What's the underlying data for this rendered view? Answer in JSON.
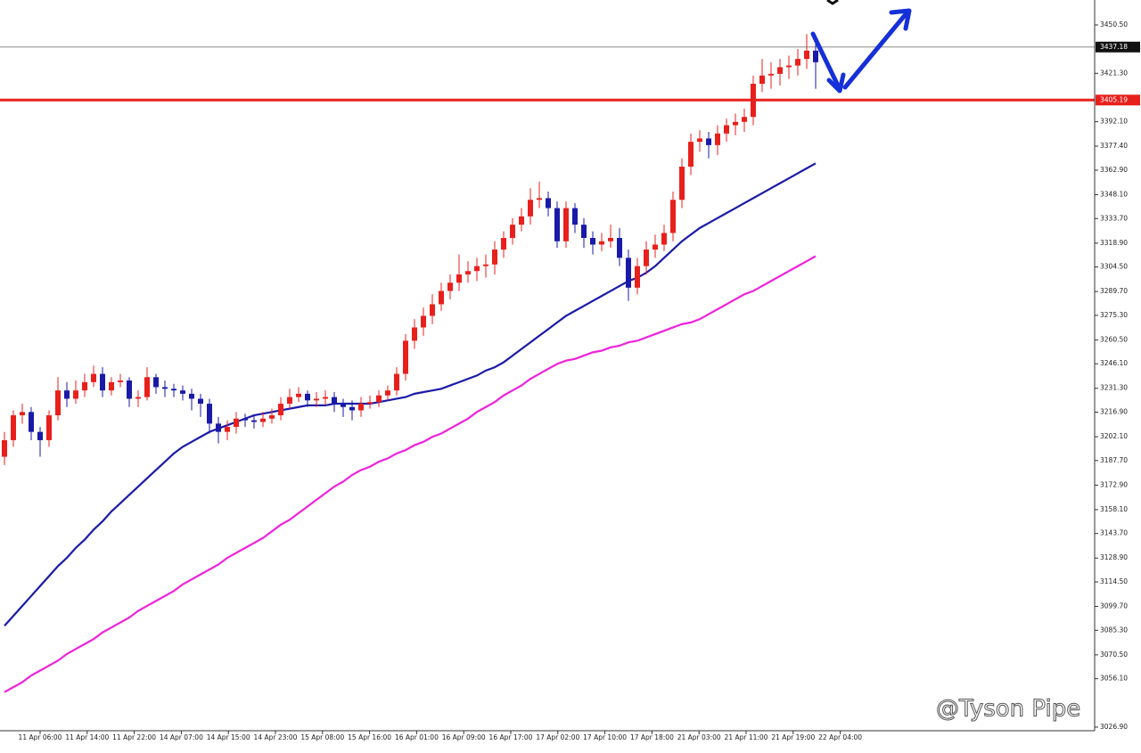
{
  "chart_data": {
    "type": "candlestick",
    "ylim": [
      3024.72,
      3465.55
    ],
    "yticks": [
      {
        "value": 3450.5,
        "label": "3450.50"
      },
      {
        "value": 3421.3,
        "label": "3421.30"
      },
      {
        "value": 3392.1,
        "label": "3392.10"
      },
      {
        "value": 3377.4,
        "label": "3377.40"
      },
      {
        "value": 3362.9,
        "label": "3362.90"
      },
      {
        "value": 3348.1,
        "label": "3348.10"
      },
      {
        "value": 3333.7,
        "label": "3333.70"
      },
      {
        "value": 3318.9,
        "label": "3318.90"
      },
      {
        "value": 3304.5,
        "label": "3304.50"
      },
      {
        "value": 3289.7,
        "label": "3289.70"
      },
      {
        "value": 3275.3,
        "label": "3275.30"
      },
      {
        "value": 3260.5,
        "label": "3260.50"
      },
      {
        "value": 3246.1,
        "label": "3246.10"
      },
      {
        "value": 3231.3,
        "label": "3231.30"
      },
      {
        "value": 3216.9,
        "label": "3216.90"
      },
      {
        "value": 3202.1,
        "label": "3202.10"
      },
      {
        "value": 3187.7,
        "label": "3187.70"
      },
      {
        "value": 3172.9,
        "label": "3172.90"
      },
      {
        "value": 3158.1,
        "label": "3158.10"
      },
      {
        "value": 3143.7,
        "label": "3143.70"
      },
      {
        "value": 3128.9,
        "label": "3128.90"
      },
      {
        "value": 3114.5,
        "label": "3114.50"
      },
      {
        "value": 3099.7,
        "label": "3099.70"
      },
      {
        "value": 3085.3,
        "label": "3085.30"
      },
      {
        "value": 3070.5,
        "label": "3070.50"
      },
      {
        "value": 3056.1,
        "label": "3056.10"
      },
      {
        "value": 3026.9,
        "label": "3026.90"
      }
    ],
    "x_labels": [
      "11 Apr 06:00",
      "11 Apr 14:00",
      "11 Apr 22:00",
      "14 Apr 07:00",
      "14 Apr 15:00",
      "14 Apr 23:00",
      "15 Apr 08:00",
      "15 Apr 16:00",
      "16 Apr 01:00",
      "16 Apr 09:00",
      "16 Apr 17:00",
      "17 Apr 02:00",
      "17 Apr 10:00",
      "17 Apr 18:00",
      "21 Apr 03:00",
      "21 Apr 11:00",
      "21 Apr 19:00",
      "22 Apr 04:00"
    ],
    "up_color": "#e8201c",
    "down_color": "#1a1aa8",
    "open": [
      3190,
      3200,
      3215,
      3217,
      3205,
      3200,
      3215,
      3230,
      3225,
      3230,
      3235,
      3240,
      3230,
      3235,
      3236,
      3225,
      3226,
      3238,
      3232,
      3231,
      3230,
      3228,
      3225,
      3222,
      3210,
      3205,
      3208,
      3213,
      3212,
      3211,
      3213,
      3215,
      3222,
      3226,
      3228,
      3224,
      3225,
      3226,
      3222,
      3220,
      3218,
      3222,
      3223,
      3227,
      3230,
      3240,
      3260,
      3268,
      3275,
      3282,
      3290,
      3295,
      3300,
      3302,
      3305,
      3306,
      3315,
      3322,
      3330,
      3335,
      3345,
      3346,
      3340,
      3320,
      3340,
      3330,
      3322,
      3318,
      3320,
      3322,
      3310,
      3292,
      3305,
      3315,
      3318,
      3325,
      3345,
      3365,
      3380,
      3382,
      3378,
      3385,
      3390,
      3392,
      3395,
      3415,
      3420,
      3421,
      3425,
      3426,
      3430,
      3435
    ],
    "high": [
      3205,
      3218,
      3222,
      3220,
      3208,
      3218,
      3238,
      3235,
      3236,
      3240,
      3245,
      3244,
      3238,
      3240,
      3238,
      3230,
      3244,
      3240,
      3236,
      3234,
      3233,
      3231,
      3228,
      3225,
      3214,
      3212,
      3217,
      3216,
      3215,
      3217,
      3219,
      3226,
      3231,
      3232,
      3230,
      3229,
      3230,
      3229,
      3225,
      3224,
      3226,
      3227,
      3230,
      3233,
      3244,
      3264,
      3273,
      3280,
      3288,
      3295,
      3300,
      3312,
      3308,
      3310,
      3312,
      3320,
      3326,
      3334,
      3340,
      3352,
      3356,
      3350,
      3344,
      3344,
      3343,
      3334,
      3326,
      3325,
      3330,
      3328,
      3315,
      3310,
      3320,
      3324,
      3330,
      3350,
      3370,
      3385,
      3387,
      3386,
      3390,
      3394,
      3397,
      3400,
      3420,
      3430,
      3428,
      3430,
      3432,
      3436,
      3445,
      3440
    ],
    "low": [
      3185,
      3196,
      3210,
      3200,
      3190,
      3196,
      3212,
      3220,
      3222,
      3226,
      3232,
      3226,
      3227,
      3232,
      3220,
      3220,
      3224,
      3228,
      3226,
      3226,
      3224,
      3218,
      3214,
      3204,
      3198,
      3200,
      3204,
      3208,
      3207,
      3208,
      3210,
      3212,
      3219,
      3223,
      3220,
      3220,
      3221,
      3217,
      3214,
      3212,
      3214,
      3219,
      3220,
      3224,
      3227,
      3236,
      3255,
      3263,
      3270,
      3278,
      3285,
      3290,
      3295,
      3296,
      3298,
      3300,
      3310,
      3318,
      3326,
      3330,
      3340,
      3335,
      3316,
      3316,
      3325,
      3316,
      3312,
      3314,
      3316,
      3305,
      3284,
      3288,
      3300,
      3310,
      3314,
      3320,
      3340,
      3360,
      3374,
      3370,
      3372,
      3380,
      3384,
      3386,
      3390,
      3410,
      3412,
      3414,
      3418,
      3420,
      3424,
      3412
    ],
    "close": [
      3200,
      3215,
      3217,
      3205,
      3200,
      3215,
      3230,
      3225,
      3230,
      3235,
      3240,
      3230,
      3235,
      3236,
      3225,
      3226,
      3238,
      3232,
      3231,
      3230,
      3228,
      3225,
      3222,
      3210,
      3205,
      3208,
      3213,
      3212,
      3211,
      3213,
      3215,
      3222,
      3226,
      3228,
      3224,
      3225,
      3226,
      3222,
      3220,
      3218,
      3222,
      3223,
      3227,
      3230,
      3240,
      3260,
      3268,
      3275,
      3282,
      3290,
      3295,
      3300,
      3302,
      3305,
      3306,
      3315,
      3322,
      3330,
      3335,
      3345,
      3346,
      3340,
      3320,
      3340,
      3330,
      3322,
      3318,
      3320,
      3322,
      3310,
      3292,
      3305,
      3315,
      3318,
      3325,
      3345,
      3365,
      3380,
      3382,
      3378,
      3385,
      3390,
      3392,
      3395,
      3415,
      3420,
      3421,
      3425,
      3426,
      3430,
      3435,
      3428
    ],
    "series": [
      {
        "color": "#1a1aa8",
        "values": [
          3088,
          3094,
          3100,
          3106,
          3112,
          3118,
          3124,
          3129,
          3135,
          3140,
          3146,
          3151,
          3157,
          3162,
          3167,
          3172,
          3177,
          3182,
          3187,
          3192,
          3196,
          3199,
          3202,
          3205,
          3207,
          3209,
          3211,
          3213,
          3215,
          3216,
          3217,
          3218,
          3219,
          3220,
          3221,
          3221,
          3221,
          3222,
          3222,
          3222,
          3222,
          3222,
          3223,
          3224,
          3225,
          3226,
          3228,
          3229,
          3230,
          3231,
          3233,
          3235,
          3237,
          3239,
          3242,
          3244,
          3247,
          3251,
          3255,
          3259,
          3263,
          3267,
          3271,
          3275,
          3278,
          3281,
          3284,
          3287,
          3290,
          3293,
          3296,
          3298,
          3301,
          3305,
          3310,
          3315,
          3320,
          3324,
          3328,
          3331,
          3334,
          3337,
          3340,
          3343,
          3346,
          3349,
          3352,
          3355,
          3358,
          3361,
          3364,
          3367
        ]
      },
      {
        "color": "#ee22dd",
        "values": [
          3048,
          3051,
          3054,
          3058,
          3061,
          3064,
          3067,
          3071,
          3074,
          3077,
          3080,
          3084,
          3087,
          3090,
          3093,
          3097,
          3100,
          3103,
          3106,
          3109,
          3113,
          3116,
          3119,
          3122,
          3125,
          3129,
          3132,
          3135,
          3138,
          3141,
          3145,
          3149,
          3152,
          3156,
          3160,
          3164,
          3168,
          3172,
          3175,
          3179,
          3182,
          3184,
          3187,
          3189,
          3192,
          3194,
          3197,
          3199,
          3202,
          3204,
          3207,
          3210,
          3213,
          3217,
          3220,
          3223,
          3227,
          3230,
          3233,
          3237,
          3240,
          3243,
          3246,
          3248,
          3249,
          3251,
          3253,
          3254,
          3256,
          3257,
          3259,
          3260,
          3262,
          3264,
          3266,
          3268,
          3270,
          3271,
          3273,
          3276,
          3279,
          3282,
          3285,
          3288,
          3290,
          3293,
          3296,
          3299,
          3302,
          3305,
          3308,
          3311
        ]
      }
    ],
    "hlines": [
      {
        "value": 3437.18,
        "color": "#888888",
        "label_bg": "#111111"
      },
      {
        "value": 3405.19,
        "color": "#e8201c",
        "label_bg": "#e8201c"
      }
    ],
    "watermark": "@Tyson Pipe"
  }
}
